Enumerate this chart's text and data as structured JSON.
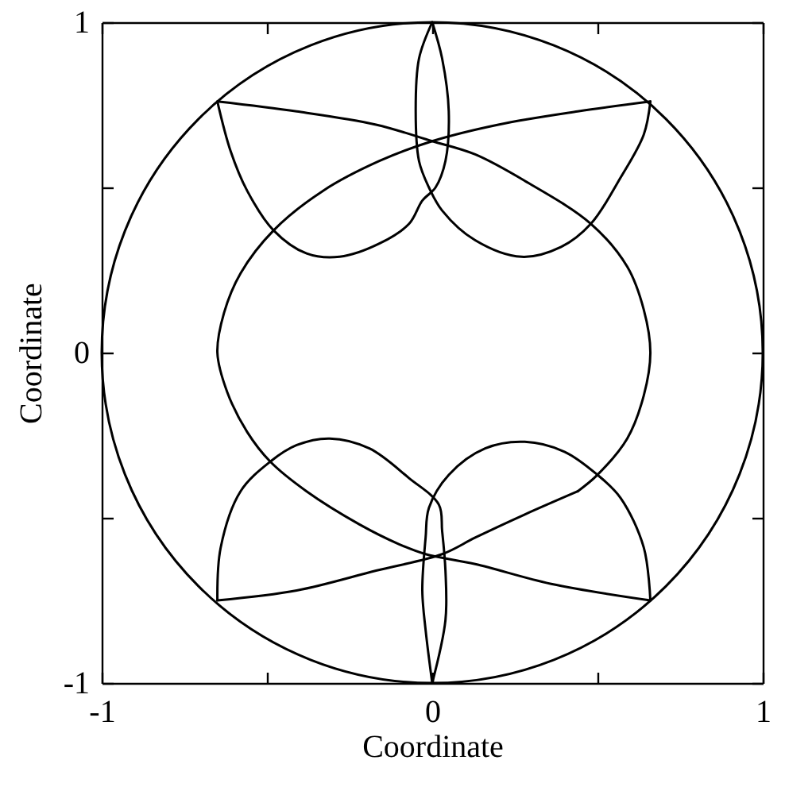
{
  "chart_data": {
    "type": "line",
    "xlabel": "Coordinate",
    "ylabel": "Coordinate",
    "xlim": [
      -1,
      1
    ],
    "ylim": [
      -1,
      1
    ],
    "xticks": [
      -1,
      {
        "value": -0.5,
        "label": null
      },
      0,
      {
        "value": 0.5,
        "label": null
      },
      1
    ],
    "yticks": [
      -1,
      {
        "value": -0.5,
        "label": null
      },
      0,
      {
        "value": 0.5,
        "label": null
      },
      1
    ],
    "series": [
      {
        "color": "#000000",
        "x": [
          -0.65,
          -0.41,
          -0.17,
          0,
          0.13,
          0.28,
          0.48,
          0.59,
          0.64,
          0.66,
          0.64,
          0.59,
          0.5,
          0.44
        ],
        "values": [
          0.76,
          0.73,
          0.69,
          0.64,
          0.6,
          0.52,
          0.39,
          0.26,
          0.13,
          0,
          -0.13,
          -0.26,
          -0.37,
          -0.42
        ]
      },
      {
        "color": "#000000",
        "x": [
          0.44,
          0.28,
          0.13,
          0.03,
          -0.17,
          -0.41,
          -0.65
        ],
        "values": [
          -0.42,
          -0.49,
          -0.56,
          -0.61,
          -0.66,
          -0.72,
          -0.75
        ]
      },
      {
        "color": "#000000",
        "x": [
          0.66,
          0.44,
          0.2,
          0,
          -0.16,
          -0.33,
          -0.48,
          -0.58,
          -0.63,
          -0.65,
          -0.62,
          -0.56,
          -0.49,
          -0.38,
          -0.22,
          -0.1,
          -0.02,
          0.13,
          0.36,
          0.66
        ],
        "values": [
          0.76,
          0.73,
          0.69,
          0.64,
          0.58,
          0.49,
          0.37,
          0.24,
          0.12,
          0,
          -0.12,
          -0.24,
          -0.33,
          -0.42,
          -0.52,
          -0.58,
          -0.61,
          -0.64,
          -0.7,
          -0.75
        ]
      },
      {
        "color": "#000000",
        "x": [
          0,
          -0.04,
          -0.05,
          -0.04,
          -0.01,
          0.03,
          0.13,
          0.27,
          0.39,
          0.48,
          0.57,
          0.64,
          0.66
        ],
        "values": [
          1,
          0.89,
          0.73,
          0.58,
          0.5,
          0.43,
          0.34,
          0.29,
          0.32,
          0.39,
          0.53,
          0.66,
          0.76
        ]
      },
      {
        "color": "#000000",
        "x": [
          0,
          0.03,
          0.05,
          0.04,
          0.01,
          -0.03,
          -0.07,
          -0.16,
          -0.28,
          -0.38,
          -0.48,
          -0.56,
          -0.61,
          -0.65
        ],
        "values": [
          1,
          0.89,
          0.73,
          0.58,
          0.5,
          0.46,
          0.39,
          0.33,
          0.29,
          0.3,
          0.37,
          0.49,
          0.61,
          0.76
        ]
      },
      {
        "color": "#000000",
        "x": [
          0,
          -0.02,
          -0.03,
          -0.02,
          -0.01,
          0.05,
          0.16,
          0.28,
          0.4,
          0.5,
          0.57,
          0.64,
          0.66
        ],
        "values": [
          -1,
          -0.84,
          -0.72,
          -0.56,
          -0.47,
          -0.37,
          -0.29,
          -0.27,
          -0.3,
          -0.37,
          -0.44,
          -0.59,
          -0.75
        ]
      },
      {
        "color": "#000000",
        "x": [
          0,
          0.04,
          0.04,
          0.03,
          0.02,
          -0.07,
          -0.19,
          -0.31,
          -0.41,
          -0.49,
          -0.58,
          -0.64,
          -0.65
        ],
        "values": [
          -1,
          -0.81,
          -0.66,
          -0.54,
          -0.46,
          -0.38,
          -0.29,
          -0.26,
          -0.28,
          -0.33,
          -0.42,
          -0.59,
          -0.75
        ]
      }
    ]
  }
}
